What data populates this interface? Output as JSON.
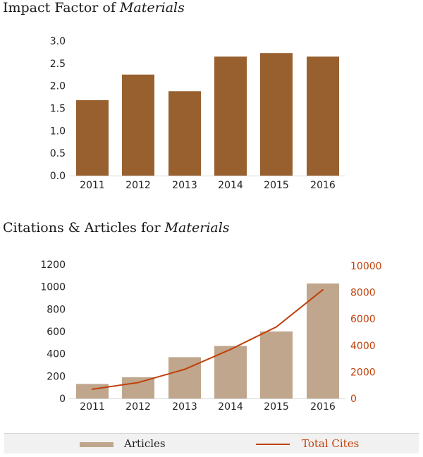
{
  "chart_data": [
    {
      "type": "bar",
      "title": "Impact Factor of",
      "title_italic": "Materials",
      "categories": [
        "2011",
        "2012",
        "2013",
        "2014",
        "2015",
        "2016"
      ],
      "values": [
        1.68,
        2.25,
        1.88,
        2.65,
        2.73,
        2.65
      ],
      "ylim": [
        0,
        3.0
      ],
      "yticks": [
        "0.0",
        "0.5",
        "1.0",
        "1.5",
        "2.0",
        "2.5",
        "3.0"
      ],
      "color": "#98602f",
      "grid": false,
      "xlabel": "",
      "ylabel": ""
    },
    {
      "type": "bar+line",
      "title": "Citations & Articles for",
      "title_italic": "Materials",
      "categories": [
        "2011",
        "2012",
        "2013",
        "2014",
        "2015",
        "2016"
      ],
      "series": [
        {
          "name": "Articles",
          "type": "bar",
          "axis": "left",
          "color": "#bfa68c",
          "values": [
            130,
            190,
            370,
            470,
            600,
            1030
          ]
        },
        {
          "name": "Total Cites",
          "type": "line",
          "axis": "right",
          "color": "#c0400a",
          "values": [
            700,
            1200,
            2200,
            3700,
            5400,
            8200
          ]
        }
      ],
      "ylim_left": [
        0,
        1200
      ],
      "yticks_left": [
        "0",
        "200",
        "400",
        "600",
        "800",
        "1000",
        "1200"
      ],
      "ylim_right": [
        0,
        10000
      ],
      "yticks_right": [
        "0",
        "2000",
        "4000",
        "6000",
        "8000",
        "10000"
      ],
      "legend_position": "bottom",
      "grid": false
    }
  ],
  "legend": {
    "articles_label": "Articles",
    "cites_label": "Total Cites"
  }
}
